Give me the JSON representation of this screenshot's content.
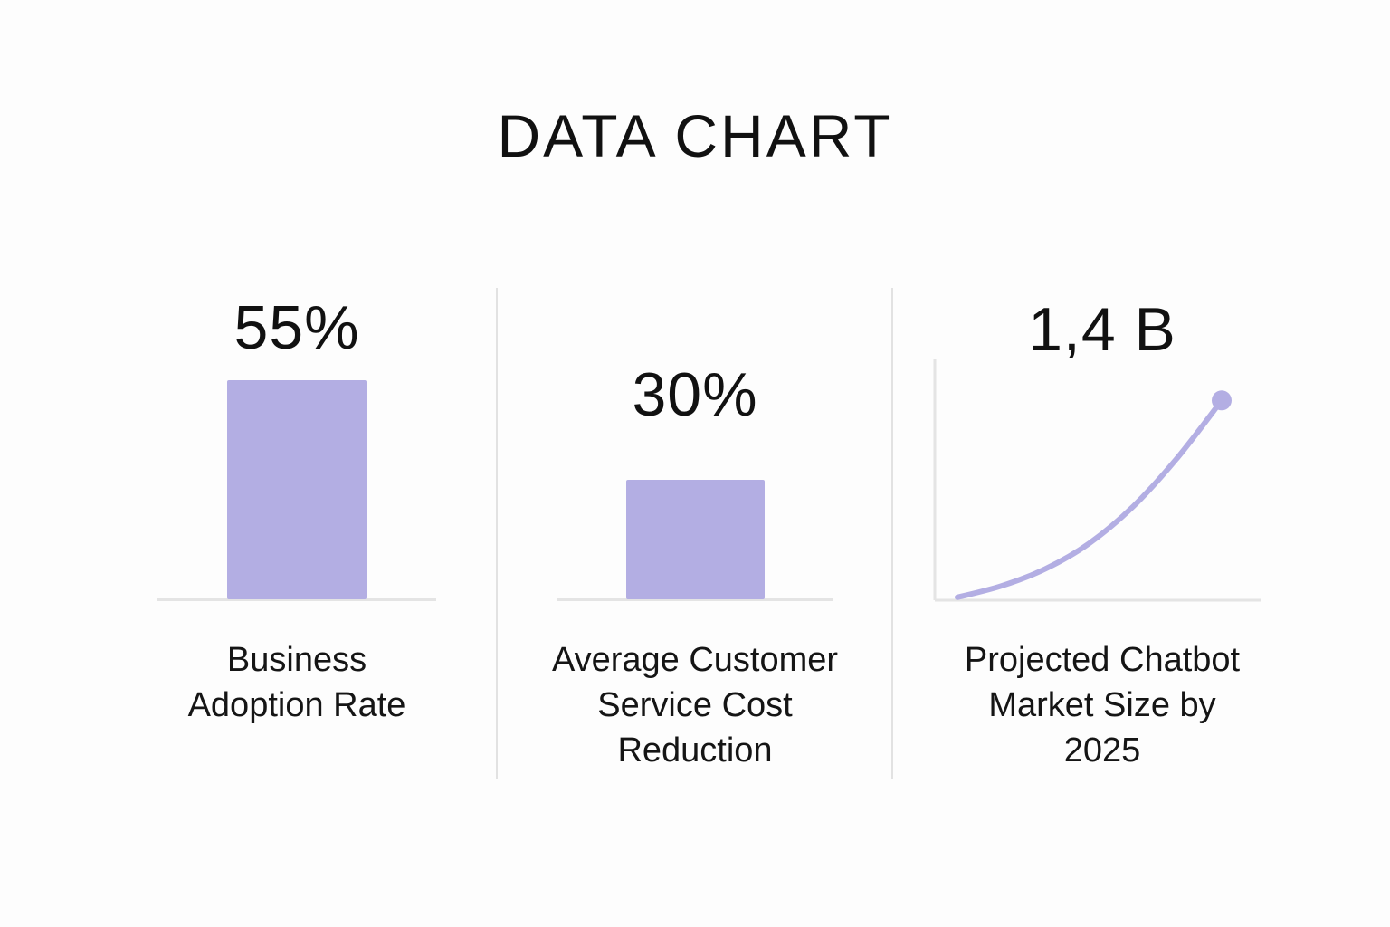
{
  "title": "DATA CHART",
  "colors": {
    "accent": "#b3aee3",
    "axis": "#e4e4e4",
    "divider": "#e2e2e2",
    "text": "#111111"
  },
  "chart_data": [
    {
      "type": "bar",
      "value_label": "55%",
      "value": 55,
      "label_lines": [
        "Business",
        "Adoption Rate"
      ],
      "ylim": [
        0,
        100
      ]
    },
    {
      "type": "bar",
      "value_label": "30%",
      "value": 30,
      "label_lines": [
        "Average Customer",
        "Service Cost",
        "Reduction"
      ],
      "ylim": [
        0,
        100
      ]
    },
    {
      "type": "line",
      "value_label": "1,4 B",
      "label_lines": [
        "Projected Chatbot",
        "Market Size by",
        "2025"
      ],
      "x": [
        0,
        1,
        2,
        3,
        4,
        5,
        6
      ],
      "y": [
        0.02,
        0.1,
        0.22,
        0.4,
        0.66,
        1.0,
        1.4
      ],
      "ylim": [
        0,
        1.7
      ]
    }
  ]
}
